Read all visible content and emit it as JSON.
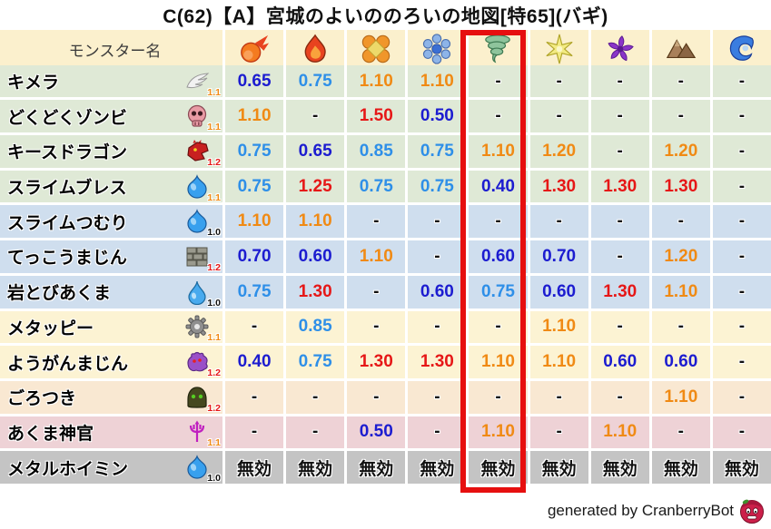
{
  "title": "C(62)【A】宮城のよいののろいの地図[特65](バギ)",
  "footer": {
    "credit": "generated by CranberryBot",
    "bot_icon": "cranberry-bot-icon"
  },
  "highlight": {
    "column_index": 5,
    "column_icon": "tornado-icon",
    "color": "#e60f0f"
  },
  "value_colors": {
    "strong_resist": "#1c1cd0",
    "resist": "#2e8fe8",
    "weak": "#f08a14",
    "very_weak": "#e61717",
    "neutral": "#111111"
  },
  "multiplier_colors": {
    "1.0": "#111111",
    "1.1": "#f08a14",
    "1.2": "#e61717"
  },
  "chart_data": {
    "type": "table",
    "title": "C(62)【A】宮城のよいののろいの地図[特65](バギ)",
    "header": {
      "name_label": "モンスター名",
      "elements": [
        {
          "icon": "fireball-icon"
        },
        {
          "icon": "flame-icon"
        },
        {
          "icon": "burst-icon"
        },
        {
          "icon": "snowflake-icon"
        },
        {
          "icon": "tornado-icon",
          "highlighted": true
        },
        {
          "icon": "starburst-icon"
        },
        {
          "icon": "pinwheel-icon"
        },
        {
          "icon": "mountain-icon"
        },
        {
          "icon": "wave-icon"
        }
      ]
    },
    "rows": [
      {
        "name": "キメラ",
        "icon": "wing-icon",
        "multiplier": "1.1",
        "tint": "green",
        "values": [
          "0.65",
          "0.75",
          "1.10",
          "1.10",
          "-",
          "-",
          "-",
          "-",
          "-"
        ]
      },
      {
        "name": "どくどくゾンビ",
        "icon": "skull-icon",
        "multiplier": "1.1",
        "tint": "green",
        "values": [
          "1.10",
          "-",
          "1.50",
          "0.50",
          "-",
          "-",
          "-",
          "-",
          "-"
        ]
      },
      {
        "name": "キースドラゴン",
        "icon": "dragon-icon",
        "multiplier": "1.2",
        "tint": "green",
        "values": [
          "0.75",
          "0.65",
          "0.85",
          "0.75",
          "1.10",
          "1.20",
          "-",
          "1.20",
          "-"
        ]
      },
      {
        "name": "スライムブレス",
        "icon": "slime-icon",
        "multiplier": "1.1",
        "tint": "green",
        "values": [
          "0.75",
          "1.25",
          "0.75",
          "0.75",
          "0.40",
          "1.30",
          "1.30",
          "1.30",
          "-"
        ]
      },
      {
        "name": "スライムつむり",
        "icon": "slime-icon",
        "multiplier": "1.0",
        "tint": "blue",
        "values": [
          "1.10",
          "1.10",
          "-",
          "-",
          "-",
          "-",
          "-",
          "-",
          "-"
        ]
      },
      {
        "name": "てっこうまじん",
        "icon": "brick-icon",
        "multiplier": "1.2",
        "tint": "blue",
        "values": [
          "0.70",
          "0.60",
          "1.10",
          "-",
          "0.60",
          "0.70",
          "-",
          "1.20",
          "-"
        ]
      },
      {
        "name": "岩とびあくま",
        "icon": "waterdrop-icon",
        "multiplier": "1.0",
        "tint": "blue",
        "values": [
          "0.75",
          "1.30",
          "-",
          "0.60",
          "0.75",
          "0.60",
          "1.30",
          "1.10",
          "-"
        ]
      },
      {
        "name": "メタッピー",
        "icon": "gear-icon",
        "multiplier": "1.1",
        "tint": "cream",
        "values": [
          "-",
          "0.85",
          "-",
          "-",
          "-",
          "1.10",
          "-",
          "-",
          "-"
        ]
      },
      {
        "name": "ようがんまじん",
        "icon": "demon-icon",
        "multiplier": "1.2",
        "tint": "cream",
        "values": [
          "0.40",
          "0.75",
          "1.30",
          "1.30",
          "1.10",
          "1.10",
          "0.60",
          "0.60",
          "-"
        ]
      },
      {
        "name": "ごろつき",
        "icon": "hood-icon",
        "multiplier": "1.2",
        "tint": "peach",
        "values": [
          "-",
          "-",
          "-",
          "-",
          "-",
          "-",
          "-",
          "1.10",
          "-"
        ]
      },
      {
        "name": "あくま神官",
        "icon": "trident-icon",
        "multiplier": "1.1",
        "tint": "pink",
        "values": [
          "-",
          "-",
          "0.50",
          "-",
          "1.10",
          "-",
          "1.10",
          "-",
          "-"
        ]
      },
      {
        "name": "メタルホイミン",
        "icon": "slime-icon",
        "multiplier": "1.0",
        "tint": "gray",
        "values": [
          "無効",
          "無効",
          "無効",
          "無効",
          "無効",
          "無効",
          "無効",
          "無効",
          "無効"
        ]
      }
    ]
  }
}
